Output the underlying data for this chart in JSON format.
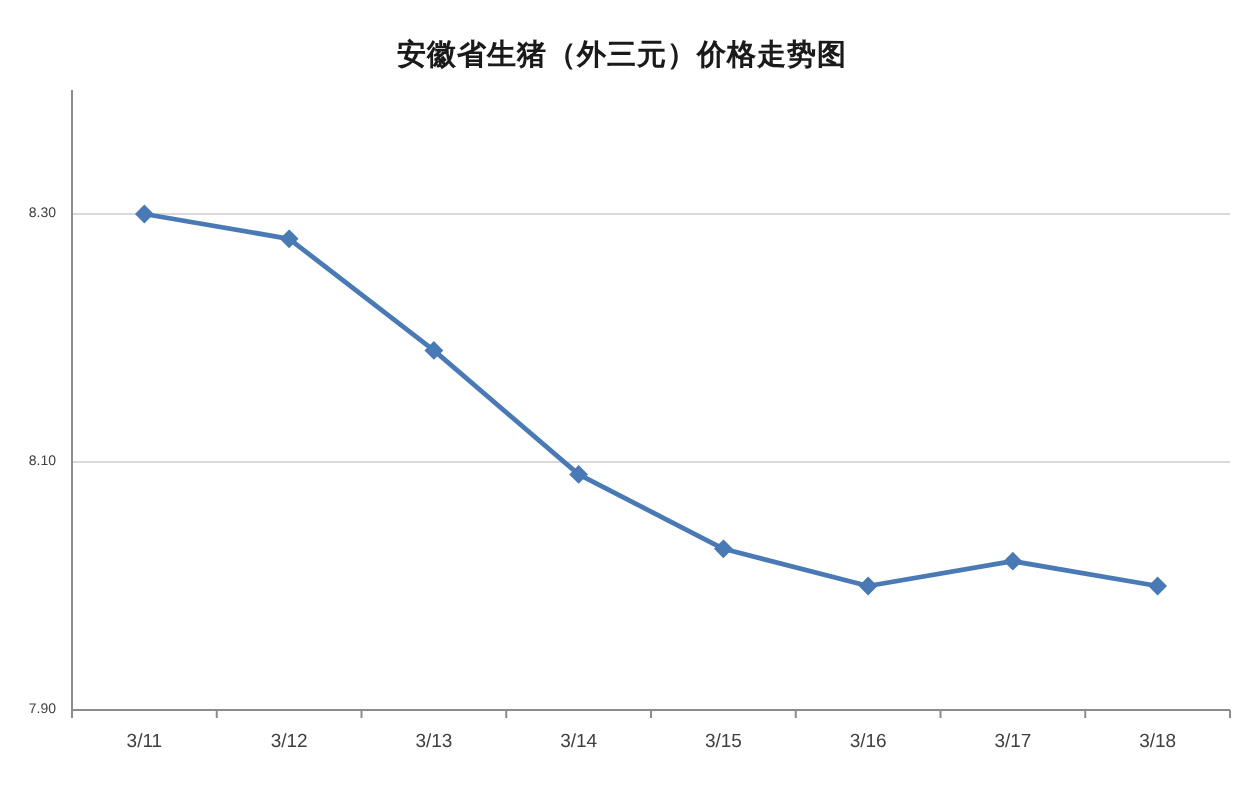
{
  "chart_data": {
    "type": "line",
    "title": "安徽省生猪（外三元）价格走势图",
    "categories": [
      "3/11",
      "3/12",
      "3/13",
      "3/14",
      "3/15",
      "3/16",
      "3/17",
      "3/18"
    ],
    "series": [
      {
        "color": "#4a7ab5",
        "values": [
          8.3,
          8.28,
          8.19,
          8.09,
          8.03,
          8.0,
          8.02,
          8.0
        ]
      }
    ],
    "ylim": [
      7.9,
      8.4
    ],
    "yticks": [
      {
        "value": 7.9,
        "label": "7.90"
      },
      {
        "value": 8.1,
        "label": "8.10"
      },
      {
        "value": 8.3,
        "label": "8.30"
      }
    ],
    "grid": "y",
    "marker": "diamond",
    "line_style": "solid"
  }
}
